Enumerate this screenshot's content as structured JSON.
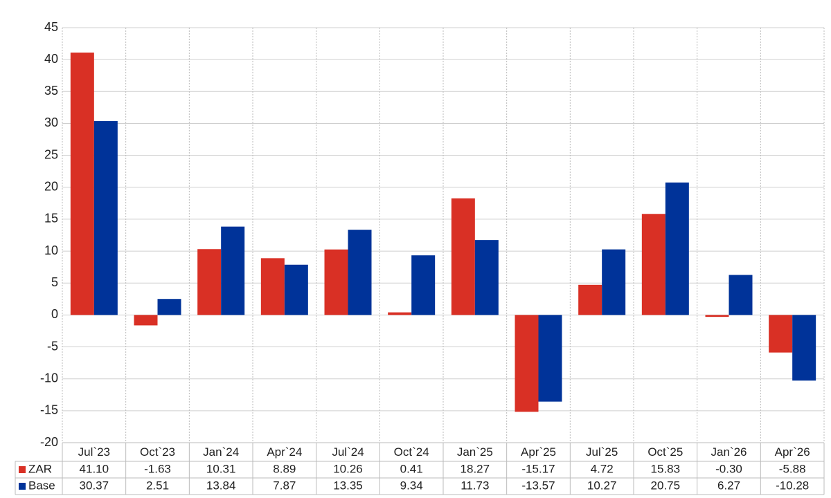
{
  "chart_data": {
    "type": "bar",
    "categories": [
      "Jul`23",
      "Oct`23",
      "Jan`24",
      "Apr`24",
      "Jul`24",
      "Oct`24",
      "Jan`25",
      "Apr`25",
      "Jul`25",
      "Oct`25",
      "Jan`26",
      "Apr`26"
    ],
    "series": [
      {
        "name": "ZAR",
        "color": "#d93025",
        "values": [
          41.1,
          -1.63,
          10.31,
          8.89,
          10.26,
          0.41,
          18.27,
          -15.17,
          4.72,
          15.83,
          -0.3,
          -5.88
        ],
        "value_labels": [
          "41.10",
          "-1.63",
          "10.31",
          "8.89",
          "10.26",
          "0.41",
          "18.27",
          "-15.17",
          "4.72",
          "15.83",
          "-0.30",
          "-5.88"
        ]
      },
      {
        "name": "Base",
        "color": "#003399",
        "values": [
          30.37,
          2.51,
          13.84,
          7.87,
          13.35,
          9.34,
          11.73,
          -13.57,
          10.27,
          20.75,
          6.27,
          -10.28
        ],
        "value_labels": [
          "30.37",
          "2.51",
          "13.84",
          "7.87",
          "13.35",
          "9.34",
          "11.73",
          "-13.57",
          "10.27",
          "20.75",
          "6.27",
          "-10.28"
        ]
      }
    ],
    "ylim": [
      -20,
      45
    ],
    "yticks": [
      -20,
      -15,
      -10,
      -5,
      0,
      5,
      10,
      15,
      20,
      25,
      30,
      35,
      40,
      45
    ],
    "grid": true,
    "negative_label_color": "#ff0000"
  }
}
